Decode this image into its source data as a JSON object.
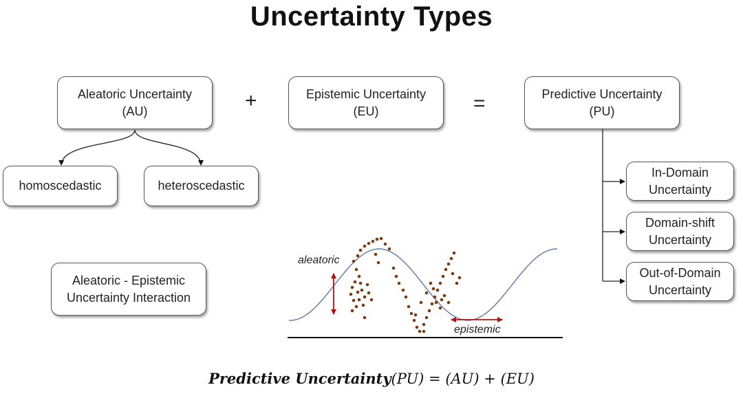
{
  "title": "Uncertainty Types",
  "boxes": {
    "aleatoric": {
      "line1": "Aleatoric Uncertainty",
      "line2": "(AU)"
    },
    "epistemic": {
      "line1": "Epistemic Uncertainty",
      "line2": "(EU)"
    },
    "predictive": {
      "line1": "Predictive Uncertainty",
      "line2": "(PU)"
    },
    "homoscedastic": "homoscedastic",
    "heteroscedastic": "heteroscedastic",
    "interaction": {
      "line1": "Aleatoric - Epistemic",
      "line2": "Uncertainty Interaction"
    },
    "in_domain": {
      "line1": "In-Domain",
      "line2": "Uncertainty"
    },
    "domain_shift": {
      "line1": "Domain-shift",
      "line2": "Uncertainty"
    },
    "out_of_domain": {
      "line1": "Out-of-Domain",
      "line2": "Uncertainty"
    }
  },
  "operators": {
    "plus": "+",
    "equals": "="
  },
  "illustration": {
    "aleatoric_label": "aleatoric",
    "epistemic_label": "epistemic"
  },
  "formula": {
    "bold_part": "Predictive Uncertainty",
    "rest": "(PU) = (AU) + (EU)"
  },
  "colors": {
    "curve": "#5b79a8",
    "dots": "#7a3d12",
    "arrows": "#b01010"
  }
}
